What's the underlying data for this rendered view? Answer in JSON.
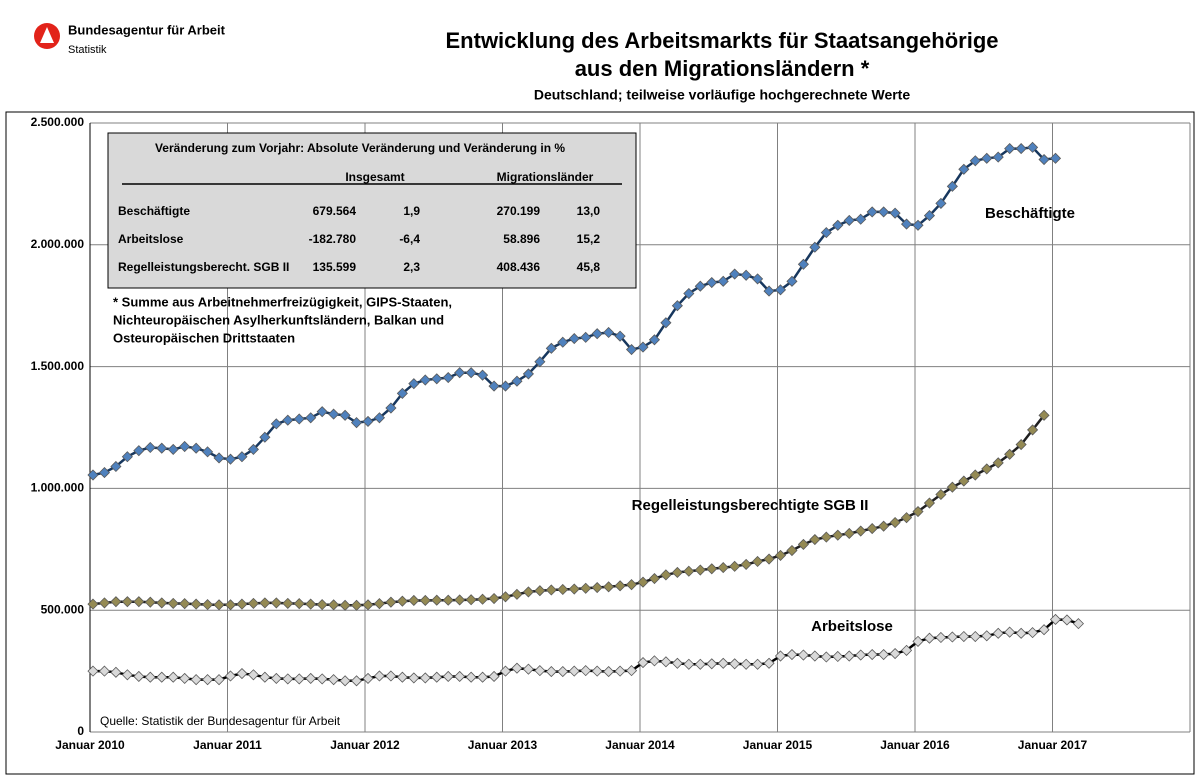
{
  "chart_data": {
    "type": "line",
    "logo": {
      "name": "Bundesagentur für Arbeit",
      "unit": "Statistik"
    },
    "title": [
      "Entwicklung des Arbeitsmarkts für Staatsangehörige",
      "aus den Migrationsländern *"
    ],
    "subtitle": "Deutschland; teilweise vorläufige hochgerechnete Werte",
    "categories": [
      "Januar 2010",
      null,
      null,
      null,
      null,
      null,
      null,
      null,
      null,
      null,
      null,
      null,
      "Januar 2011",
      null,
      null,
      null,
      null,
      null,
      null,
      null,
      null,
      null,
      null,
      null,
      "Januar 2012",
      null,
      null,
      null,
      null,
      null,
      null,
      null,
      null,
      null,
      null,
      null,
      "Januar 2013",
      null,
      null,
      null,
      null,
      null,
      null,
      null,
      null,
      null,
      null,
      null,
      "Januar 2014",
      null,
      null,
      null,
      null,
      null,
      null,
      null,
      null,
      null,
      null,
      null,
      "Januar 2015",
      null,
      null,
      null,
      null,
      null,
      null,
      null,
      null,
      null,
      null,
      null,
      "Januar 2016",
      null,
      null,
      null,
      null,
      null,
      null,
      null,
      null,
      null,
      null,
      null,
      "Januar 2017",
      null,
      null,
      null,
      null,
      null,
      null,
      null,
      null,
      null,
      null,
      null
    ],
    "ylim": [
      0,
      2500000
    ],
    "yticks": [
      0,
      {
        "value": 500000,
        "label": "500.000"
      },
      {
        "value": 1000000,
        "label": "1.000.000"
      },
      {
        "value": 1500000,
        "label": "1.500.000"
      },
      {
        "value": 2000000,
        "label": "2.000.000"
      },
      {
        "value": 2500000,
        "label": "2.500.000"
      }
    ],
    "grid": true,
    "series": [
      {
        "name": "Beschäftigte",
        "color": "#4f81bd",
        "line_color": "#17375e",
        "values": [
          1055000,
          1065000,
          1090000,
          1130000,
          1155000,
          1168000,
          1165000,
          1160000,
          1172000,
          1165000,
          1150000,
          1125000,
          1120000,
          1130000,
          1160000,
          1210000,
          1265000,
          1280000,
          1285000,
          1290000,
          1315000,
          1305000,
          1300000,
          1270000,
          1275000,
          1290000,
          1330000,
          1390000,
          1430000,
          1445000,
          1450000,
          1455000,
          1475000,
          1475000,
          1465000,
          1420000,
          1420000,
          1440000,
          1470000,
          1520000,
          1575000,
          1600000,
          1615000,
          1620000,
          1635000,
          1640000,
          1625000,
          1570000,
          1580000,
          1610000,
          1680000,
          1750000,
          1800000,
          1830000,
          1845000,
          1850000,
          1880000,
          1875000,
          1860000,
          1810000,
          1815000,
          1850000,
          1920000,
          1990000,
          2050000,
          2080000,
          2100000,
          2105000,
          2135000,
          2135000,
          2130000,
          2085000,
          2080000,
          2120000,
          2170000,
          2240000,
          2310000,
          2345000,
          2355000,
          2360000,
          2395000,
          2395000,
          2400000,
          2350000,
          2355000,
          null,
          null,
          null,
          null,
          null,
          null,
          null,
          null,
          null,
          null,
          null
        ]
      },
      {
        "name": "Regelleistungsberechtigte SGB II",
        "color": "#948a54",
        "line_color": "#1f1f1f",
        "values": [
          525000,
          530000,
          535000,
          535000,
          535000,
          533000,
          530000,
          528000,
          527000,
          525000,
          523000,
          522000,
          522000,
          525000,
          528000,
          530000,
          530000,
          528000,
          527000,
          525000,
          523000,
          522000,
          520000,
          520000,
          522000,
          527000,
          533000,
          537000,
          540000,
          540000,
          541000,
          541000,
          542000,
          543000,
          545000,
          548000,
          555000,
          565000,
          575000,
          580000,
          583000,
          585000,
          587000,
          590000,
          593000,
          596000,
          600000,
          605000,
          615000,
          630000,
          645000,
          655000,
          660000,
          665000,
          670000,
          675000,
          680000,
          688000,
          700000,
          710000,
          725000,
          745000,
          770000,
          790000,
          800000,
          808000,
          815000,
          825000,
          835000,
          845000,
          860000,
          880000,
          905000,
          940000,
          975000,
          1005000,
          1030000,
          1055000,
          1080000,
          1105000,
          1140000,
          1180000,
          1240000,
          1300000,
          null,
          null,
          null,
          null,
          null,
          null,
          null,
          null,
          null,
          null,
          null,
          null
        ]
      },
      {
        "name": "Arbeitslose",
        "color": "#d9d9d9",
        "line_color": "#000000",
        "values": [
          250000,
          250000,
          245000,
          235000,
          228000,
          225000,
          225000,
          225000,
          220000,
          215000,
          215000,
          215000,
          230000,
          240000,
          235000,
          225000,
          220000,
          218000,
          218000,
          220000,
          218000,
          215000,
          210000,
          210000,
          220000,
          230000,
          230000,
          225000,
          222000,
          222000,
          225000,
          228000,
          228000,
          225000,
          225000,
          228000,
          250000,
          262000,
          258000,
          252000,
          248000,
          248000,
          250000,
          252000,
          250000,
          248000,
          250000,
          252000,
          285000,
          292000,
          288000,
          282000,
          278000,
          278000,
          280000,
          282000,
          280000,
          278000,
          278000,
          282000,
          312000,
          318000,
          316000,
          312000,
          308000,
          310000,
          312000,
          316000,
          318000,
          318000,
          322000,
          335000,
          372000,
          385000,
          388000,
          390000,
          392000,
          392000,
          395000,
          405000,
          410000,
          405000,
          408000,
          420000,
          462000,
          460000,
          445000,
          null,
          null,
          null,
          null,
          null,
          null,
          null,
          null,
          null
        ]
      }
    ],
    "table": {
      "title": "Veränderung zum Vorjahr: Absolute Veränderung und Veränderung in %",
      "groups": [
        "Insgesamt",
        "Migrationsländer"
      ],
      "rows": [
        [
          "Beschäftigte",
          "679.564",
          "1,9",
          "270.199",
          "13,0"
        ],
        [
          "Arbeitslose",
          "-182.780",
          "-6,4",
          "58.896",
          "15,2"
        ],
        [
          "Regelleistungsberecht. SGB II",
          "135.599",
          "2,3",
          "408.436",
          "45,8"
        ]
      ]
    },
    "footnote": [
      "* Summe aus Arbeitnehmerfreizügigkeit, GIPS-Staaten,",
      "Nichteuropäischen Asylherkunftsländern, Balkan und",
      "Osteuropäischen Drittstaaten"
    ],
    "source": "Quelle: Statistik der Bundesagentur für Arbeit"
  }
}
